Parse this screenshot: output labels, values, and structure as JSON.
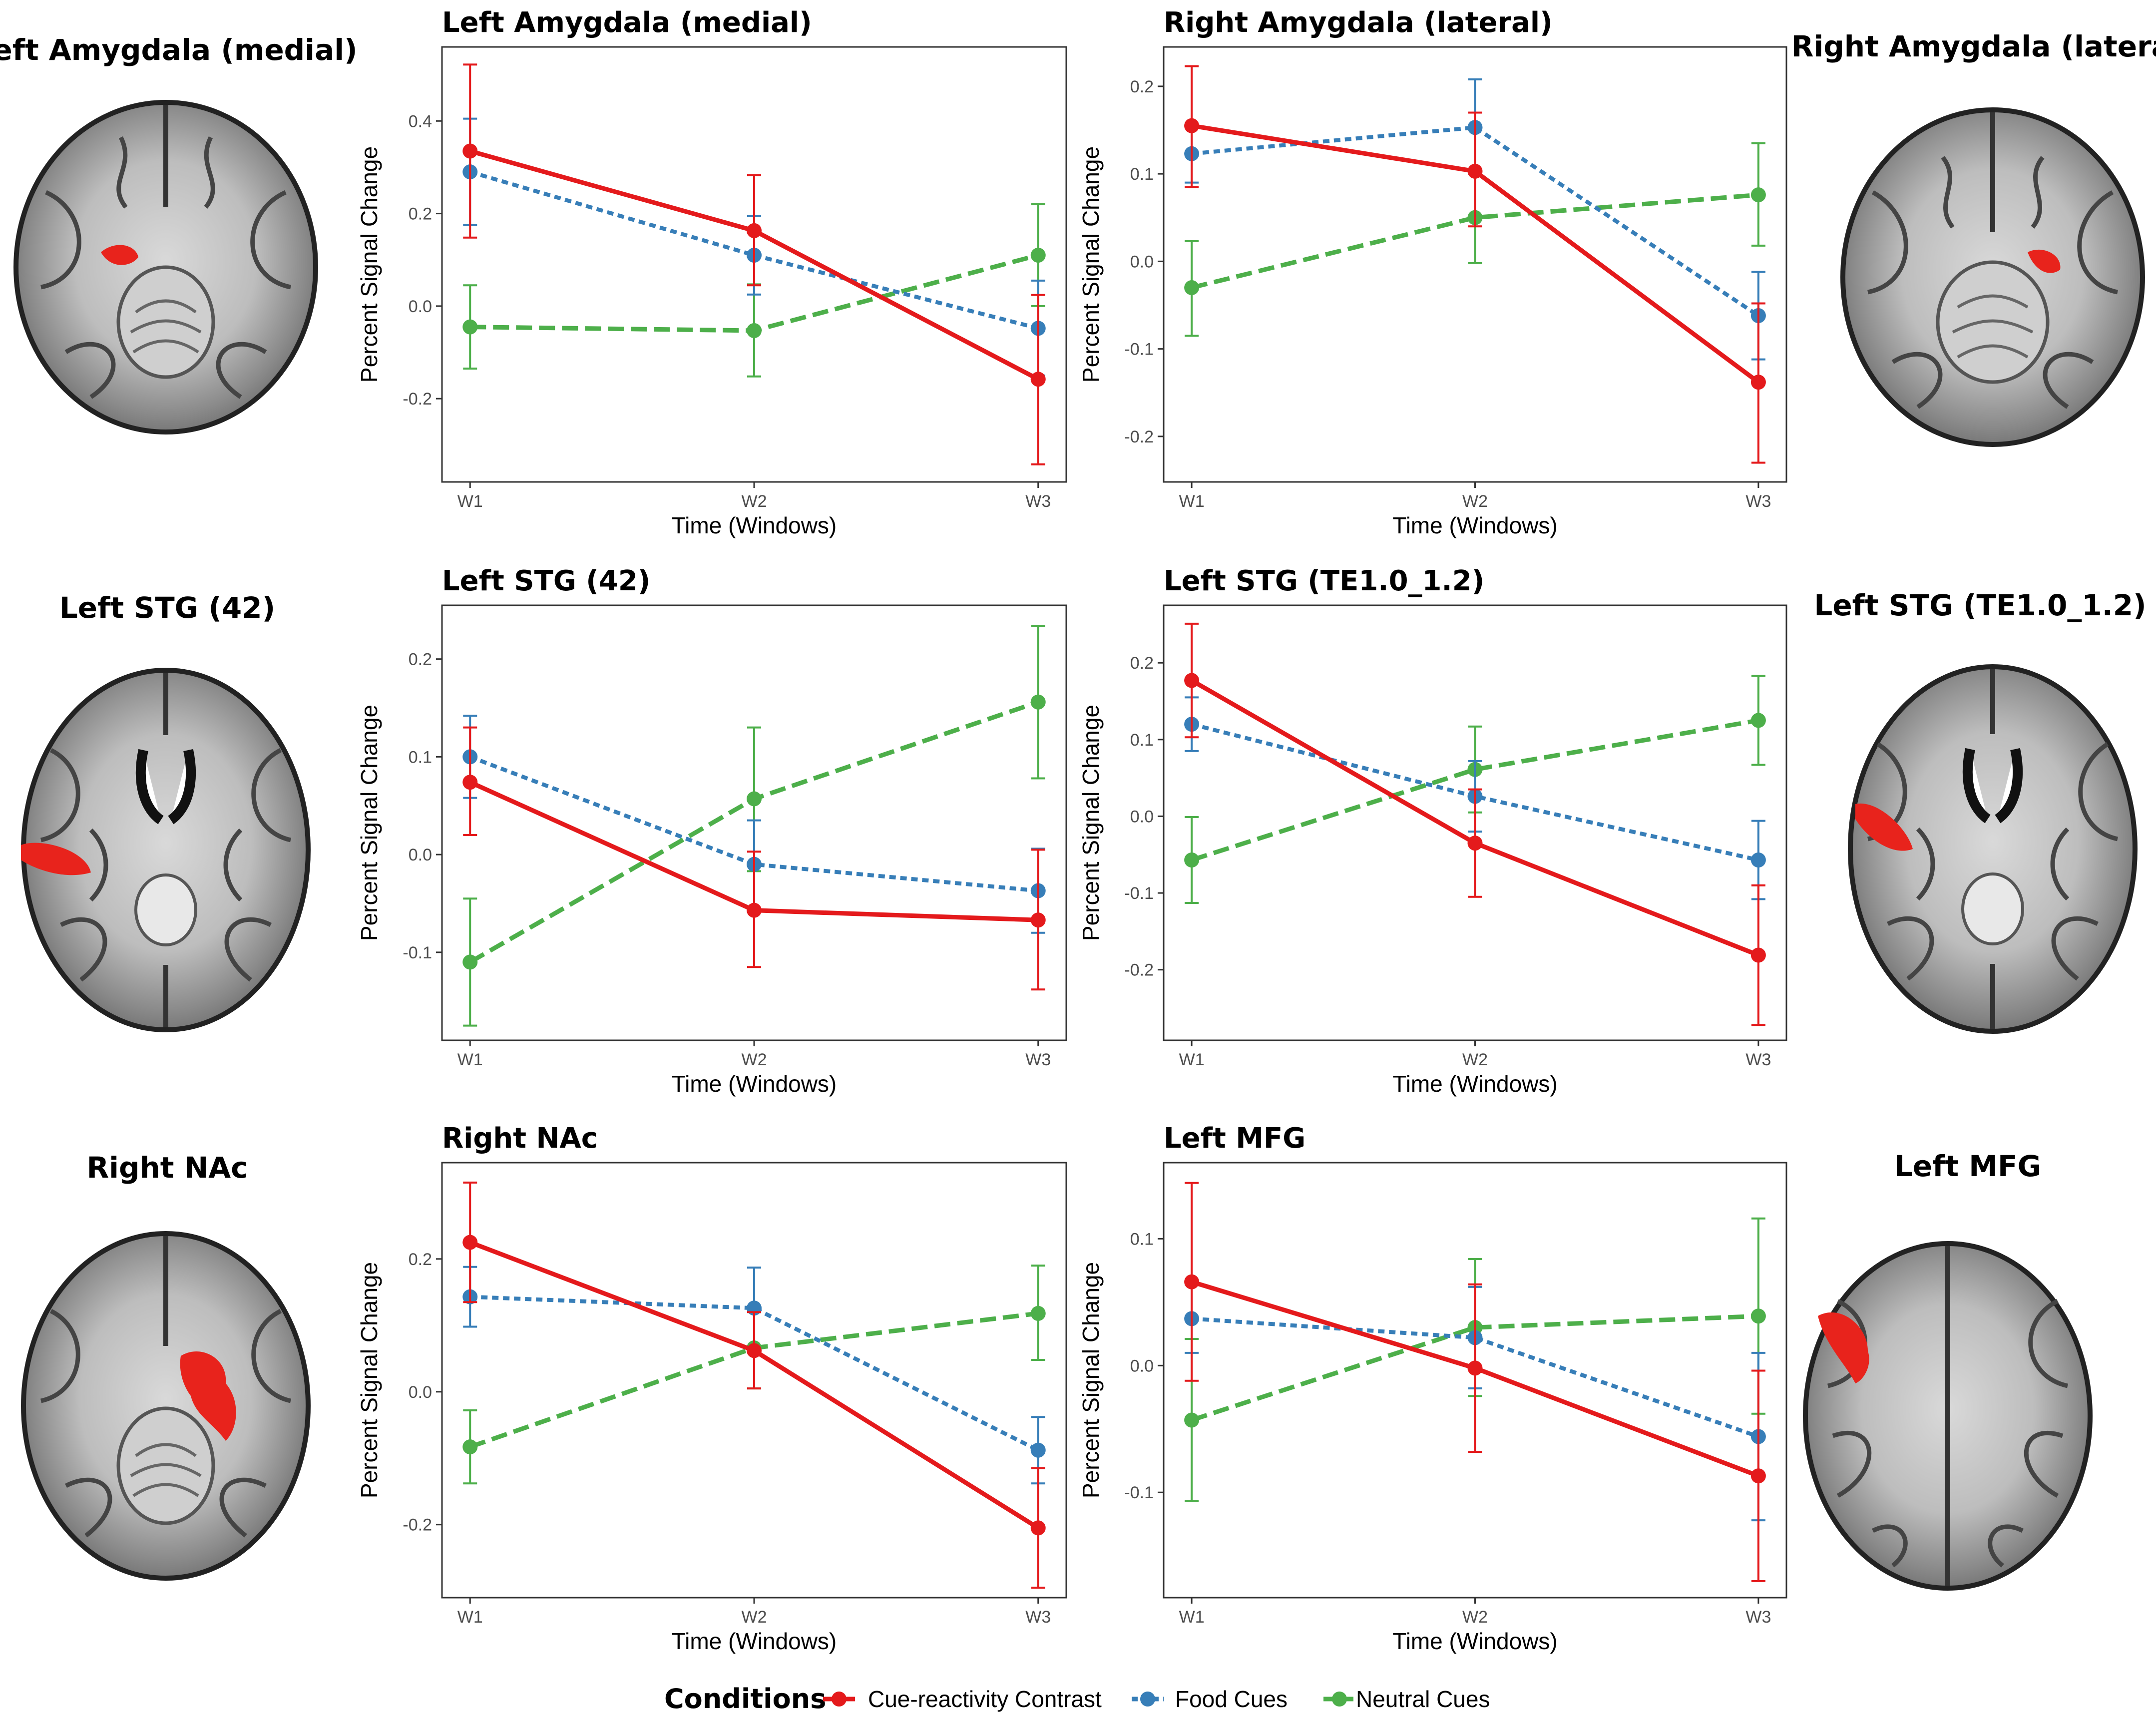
{
  "colors": {
    "cue_reactivity": "#e41a1c",
    "food": "#377eb8",
    "neutral": "#4daf4a",
    "roi": "#e8231c"
  },
  "brains": [
    {
      "title": "Left Amygdala (medial)",
      "roi": "amygdala-left"
    },
    {
      "title": "Right Amygdala (lateral)",
      "roi": "amygdala-right"
    },
    {
      "title": "Left STG (42)",
      "roi": "stg-left"
    },
    {
      "title": "Left STG (TE1.0_1.2)",
      "roi": "stg-left-te"
    },
    {
      "title": "Right NAc",
      "roi": "nac-right"
    },
    {
      "title": "Left MFG",
      "roi": "mfg-left"
    }
  ],
  "legend": {
    "title": "Conditions",
    "items": [
      "Cue-reactivity Contrast",
      "Food Cues",
      "Neutral Cues"
    ]
  },
  "chart_data": [
    {
      "type": "line",
      "title": "Left Amygdala (medial)",
      "xlabel": "Time (Windows)",
      "ylabel": "Percent Signal Change",
      "categories": [
        "W1",
        "W2",
        "W3"
      ],
      "ylim": [
        -0.38,
        0.56
      ],
      "yticks": [
        0.4,
        0.2,
        0.0,
        -0.2
      ],
      "ytick_labels": [
        "0.4",
        "0.2",
        "0.0",
        "-0.2"
      ],
      "series": [
        {
          "name": "Cue-reactivity Contrast",
          "key": "cue",
          "style": "solid",
          "values": [
            0.335,
            0.163,
            -0.158
          ],
          "lower": [
            0.148,
            0.045,
            -0.342
          ],
          "upper": [
            0.522,
            0.283,
            0.024
          ]
        },
        {
          "name": "Food Cues",
          "key": "food",
          "style": "dotted",
          "values": [
            0.29,
            0.11,
            -0.048
          ],
          "lower": [
            0.175,
            0.025,
            -0.15
          ],
          "upper": [
            0.405,
            0.195,
            0.055
          ]
        },
        {
          "name": "Neutral Cues",
          "key": "neutral",
          "style": "dashed",
          "values": [
            -0.045,
            -0.053,
            0.11
          ],
          "lower": [
            -0.135,
            -0.152,
            0.0
          ],
          "upper": [
            0.045,
            0.047,
            0.22
          ]
        }
      ]
    },
    {
      "type": "line",
      "title": "Right Amygdala (lateral)",
      "xlabel": "Time (Windows)",
      "ylabel": "Percent Signal Change",
      "categories": [
        "W1",
        "W2",
        "W3"
      ],
      "ylim": [
        -0.252,
        0.245
      ],
      "yticks": [
        0.2,
        0.1,
        0.0,
        -0.1,
        -0.2
      ],
      "ytick_labels": [
        "0.2",
        "0.1",
        "0.0",
        "-0.1",
        "-0.2"
      ],
      "series": [
        {
          "name": "Cue-reactivity Contrast",
          "key": "cue",
          "style": "solid",
          "values": [
            0.155,
            0.103,
            -0.138
          ],
          "lower": [
            0.085,
            0.04,
            -0.23
          ],
          "upper": [
            0.223,
            0.17,
            -0.048
          ]
        },
        {
          "name": "Food Cues",
          "key": "food",
          "style": "dotted",
          "values": [
            0.123,
            0.153,
            -0.062
          ],
          "lower": [
            0.09,
            0.1,
            -0.112
          ],
          "upper": [
            0.155,
            0.208,
            -0.012
          ]
        },
        {
          "name": "Neutral Cues",
          "key": "neutral",
          "style": "dashed",
          "values": [
            -0.03,
            0.05,
            0.076
          ],
          "lower": [
            -0.085,
            -0.002,
            0.018
          ],
          "upper": [
            0.023,
            0.103,
            0.135
          ]
        }
      ]
    },
    {
      "type": "line",
      "title": "Left STG (42)",
      "xlabel": "Time (Windows)",
      "ylabel": "Percent Signal Change",
      "categories": [
        "W1",
        "W2",
        "W3"
      ],
      "ylim": [
        -0.19,
        0.255
      ],
      "yticks": [
        0.2,
        0.1,
        0.0,
        -0.1
      ],
      "ytick_labels": [
        "0.2",
        "0.1",
        "0.0",
        "-0.1"
      ],
      "series": [
        {
          "name": "Cue-reactivity Contrast",
          "key": "cue",
          "style": "solid",
          "values": [
            0.074,
            -0.057,
            -0.067
          ],
          "lower": [
            0.02,
            -0.115,
            -0.138
          ],
          "upper": [
            0.13,
            0.003,
            0.005
          ]
        },
        {
          "name": "Food Cues",
          "key": "food",
          "style": "dotted",
          "values": [
            0.1,
            -0.01,
            -0.037
          ],
          "lower": [
            0.058,
            -0.055,
            -0.08
          ],
          "upper": [
            0.142,
            0.035,
            0.006
          ]
        },
        {
          "name": "Neutral Cues",
          "key": "neutral",
          "style": "dashed",
          "values": [
            -0.11,
            0.057,
            0.156
          ],
          "lower": [
            -0.175,
            -0.017,
            0.078
          ],
          "upper": [
            -0.045,
            0.13,
            0.234
          ]
        }
      ]
    },
    {
      "type": "line",
      "title": "Left STG (TE1.0_1.2)",
      "xlabel": "Time (Windows)",
      "ylabel": "Percent Signal Change",
      "categories": [
        "W1",
        "W2",
        "W3"
      ],
      "ylim": [
        -0.292,
        0.275
      ],
      "yticks": [
        0.2,
        0.1,
        0.0,
        -0.1,
        -0.2
      ],
      "ytick_labels": [
        "0.2",
        "0.1",
        "0.0",
        "-0.1",
        "-0.2"
      ],
      "series": [
        {
          "name": "Cue-reactivity Contrast",
          "key": "cue",
          "style": "solid",
          "values": [
            0.177,
            -0.035,
            -0.181
          ],
          "lower": [
            0.103,
            -0.105,
            -0.272
          ],
          "upper": [
            0.251,
            0.035,
            -0.09
          ]
        },
        {
          "name": "Food Cues",
          "key": "food",
          "style": "dotted",
          "values": [
            0.12,
            0.026,
            -0.057
          ],
          "lower": [
            0.085,
            -0.02,
            -0.108
          ],
          "upper": [
            0.155,
            0.072,
            -0.006
          ]
        },
        {
          "name": "Neutral Cues",
          "key": "neutral",
          "style": "dashed",
          "values": [
            -0.057,
            0.061,
            0.125
          ],
          "lower": [
            -0.113,
            0.005,
            0.067
          ],
          "upper": [
            -0.001,
            0.117,
            0.183
          ]
        }
      ]
    },
    {
      "type": "line",
      "title": "Right NAc",
      "xlabel": "Time (Windows)",
      "ylabel": "Percent Signal Change",
      "categories": [
        "W1",
        "W2",
        "W3"
      ],
      "ylim": [
        -0.31,
        0.345
      ],
      "yticks": [
        0.2,
        0.0,
        -0.2
      ],
      "ytick_labels": [
        "0.2",
        "0.0",
        "-0.2"
      ],
      "series": [
        {
          "name": "Cue-reactivity Contrast",
          "key": "cue",
          "style": "solid",
          "values": [
            0.225,
            0.062,
            -0.205
          ],
          "lower": [
            0.135,
            0.005,
            -0.295
          ],
          "upper": [
            0.315,
            0.12,
            -0.115
          ]
        },
        {
          "name": "Food Cues",
          "key": "food",
          "style": "dotted",
          "values": [
            0.143,
            0.126,
            -0.088
          ],
          "lower": [
            0.098,
            0.065,
            -0.138
          ],
          "upper": [
            0.188,
            0.187,
            -0.038
          ]
        },
        {
          "name": "Neutral Cues",
          "key": "neutral",
          "style": "dashed",
          "values": [
            -0.083,
            0.066,
            0.118
          ],
          "lower": [
            -0.138,
            0.005,
            0.048
          ],
          "upper": [
            -0.028,
            0.128,
            0.19
          ]
        }
      ]
    },
    {
      "type": "line",
      "title": "Left MFG",
      "xlabel": "Time (Windows)",
      "ylabel": "Percent Signal Change",
      "categories": [
        "W1",
        "W2",
        "W3"
      ],
      "ylim": [
        -0.183,
        0.16
      ],
      "yticks": [
        0.1,
        0.0,
        -0.1
      ],
      "ytick_labels": [
        "0.1",
        "0.0",
        "-0.1"
      ],
      "series": [
        {
          "name": "Cue-reactivity Contrast",
          "key": "cue",
          "style": "solid",
          "values": [
            0.066,
            -0.002,
            -0.087
          ],
          "lower": [
            -0.012,
            -0.068,
            -0.17
          ],
          "upper": [
            0.144,
            0.064,
            -0.004
          ]
        },
        {
          "name": "Food Cues",
          "key": "food",
          "style": "dotted",
          "values": [
            0.037,
            0.022,
            -0.056
          ],
          "lower": [
            0.01,
            -0.018,
            -0.122
          ],
          "upper": [
            0.064,
            0.062,
            0.01
          ]
        },
        {
          "name": "Neutral Cues",
          "key": "neutral",
          "style": "dashed",
          "values": [
            -0.043,
            0.03,
            0.039
          ],
          "lower": [
            -0.107,
            -0.024,
            -0.038
          ],
          "upper": [
            0.021,
            0.084,
            0.116
          ]
        }
      ]
    }
  ]
}
